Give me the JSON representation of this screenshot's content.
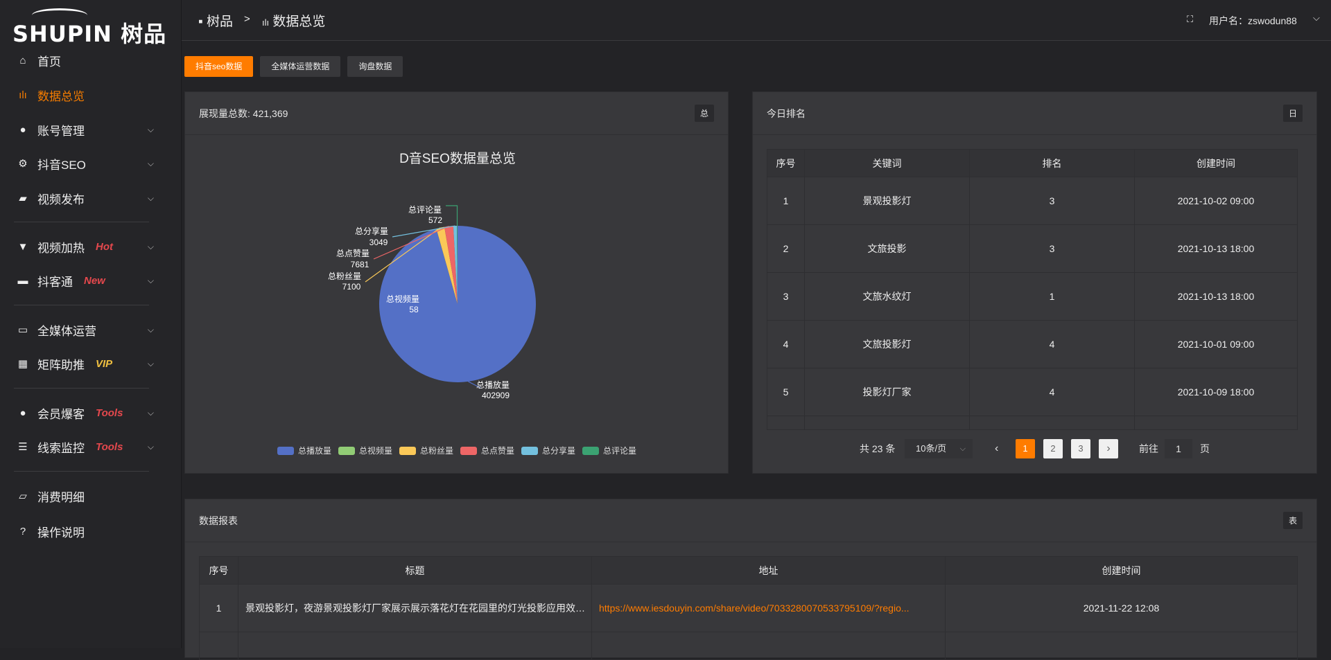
{
  "brand": {
    "logo": "SHUPIN 树品"
  },
  "sidebar": {
    "items": [
      {
        "label": "首页",
        "icon": "home-icon"
      },
      {
        "label": "数据总览",
        "icon": "bar-chart-icon",
        "active": true
      },
      {
        "label": "账号管理",
        "icon": "user-icon"
      },
      {
        "label": "抖音SEO",
        "icon": "gear-icon"
      },
      {
        "label": "视频发布",
        "icon": "camera-icon"
      },
      {
        "label": "视频加热",
        "icon": "heat-icon",
        "badge": "Hot",
        "badge_color": "#e5484d"
      },
      {
        "label": "抖客通",
        "icon": "chat-icon",
        "badge": "New",
        "badge_color": "#e5484d"
      },
      {
        "label": "全媒体运营",
        "icon": "monitor-icon"
      },
      {
        "label": "矩阵助推",
        "icon": "grid-icon",
        "badge": "VIP",
        "badge_color": "#f0c040"
      },
      {
        "label": "会员爆客",
        "icon": "user-icon",
        "badge": "Tools",
        "badge_color": "#e5484d"
      },
      {
        "label": "线索监控",
        "icon": "sliders-icon",
        "badge": "Tools",
        "badge_color": "#e5484d"
      },
      {
        "label": "消费明细",
        "icon": "wallet-icon"
      },
      {
        "label": "操作说明",
        "icon": "help-icon"
      }
    ]
  },
  "header": {
    "breadcrumb": [
      "树品",
      ">",
      "数据总览"
    ],
    "user": "用户名：zswodun88"
  },
  "tabs": [
    "抖音seo数据",
    "全媒体运营数据",
    "询盘数据"
  ],
  "card_summary": {
    "title": "展现量总数: 421,369",
    "tag": "总"
  },
  "chart_data": {
    "type": "pie",
    "title": "D音SEO数据量总览",
    "legend_position": "bottom",
    "categories": [
      "总播放量",
      "总视频量",
      "总粉丝量",
      "总点赞量",
      "总分享量",
      "总评论量"
    ],
    "values": [
      402909,
      58,
      7100,
      7681,
      3049,
      572
    ],
    "colors": [
      "#5470c6",
      "#91cc75",
      "#fac858",
      "#ee6666",
      "#73c0de",
      "#3ba272"
    ]
  },
  "ranking": {
    "title": "今日排名",
    "tag": "日",
    "columns": [
      "序号",
      "关键词",
      "排名",
      "创建时间"
    ],
    "rows": [
      [
        "1",
        "景观投影灯",
        "3",
        "2021-10-02 09:00"
      ],
      [
        "2",
        "文旅投影",
        "3",
        "2021-10-13 18:00"
      ],
      [
        "3",
        "文旅水纹灯",
        "1",
        "2021-10-13 18:00"
      ],
      [
        "4",
        "文旅投影灯",
        "4",
        "2021-10-01 09:00"
      ],
      [
        "5",
        "投影灯厂家",
        "4",
        "2021-10-09 18:00"
      ]
    ],
    "pagination": {
      "total": "共 23 条",
      "page_size": "10条/页",
      "pages": [
        "1",
        "2",
        "3"
      ],
      "current": "1",
      "goto_label": "前往",
      "goto_value": "1",
      "page_unit": "页"
    }
  },
  "report": {
    "title": "数据报表",
    "tag": "表",
    "columns": [
      "序号",
      "标题",
      "地址",
      "创建时间"
    ],
    "rows": [
      [
        "1",
        "景观投影灯，夜游景观投影灯厂家展示展示落花灯在花园里的灯光投影应用效果 #",
        "https://www.iesdouyin.com/share/video/7033280070533795109/?regio...",
        "2021-11-22 12:08"
      ]
    ]
  }
}
